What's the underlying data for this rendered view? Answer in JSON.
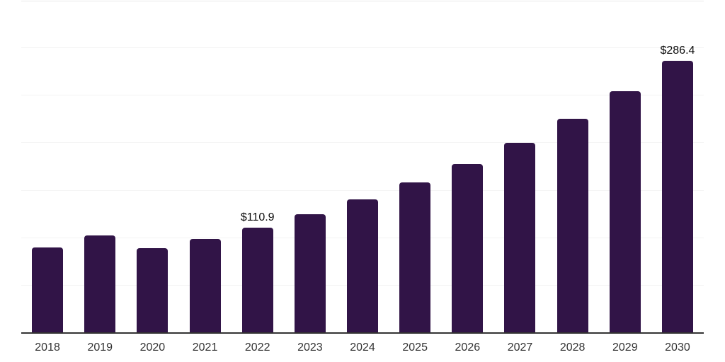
{
  "chart_data": {
    "type": "bar",
    "title": "",
    "xlabel": "",
    "ylabel": "",
    "legend": "none",
    "grid": "horizontal",
    "categories": [
      "2018",
      "2019",
      "2020",
      "2021",
      "2022",
      "2023",
      "2024",
      "2025",
      "2026",
      "2027",
      "2028",
      "2029",
      "2030"
    ],
    "values": [
      90.0,
      102.7,
      89.5,
      98.8,
      110.9,
      124.9,
      140.6,
      158.3,
      178.2,
      200.7,
      225.9,
      254.4,
      286.4
    ],
    "data_labels": {
      "2022": "$110.9",
      "2030": "$286.4"
    },
    "ylim": [
      0,
      350
    ],
    "gridline_step": 50,
    "colors": {
      "bar": "#311447",
      "axis": "#333333",
      "gridline": "#f4f4f4",
      "top_gridline": "#e9e9e9",
      "data_label": "#0a0a0a",
      "tick_label": "#333333",
      "background": "#ffffff"
    }
  }
}
